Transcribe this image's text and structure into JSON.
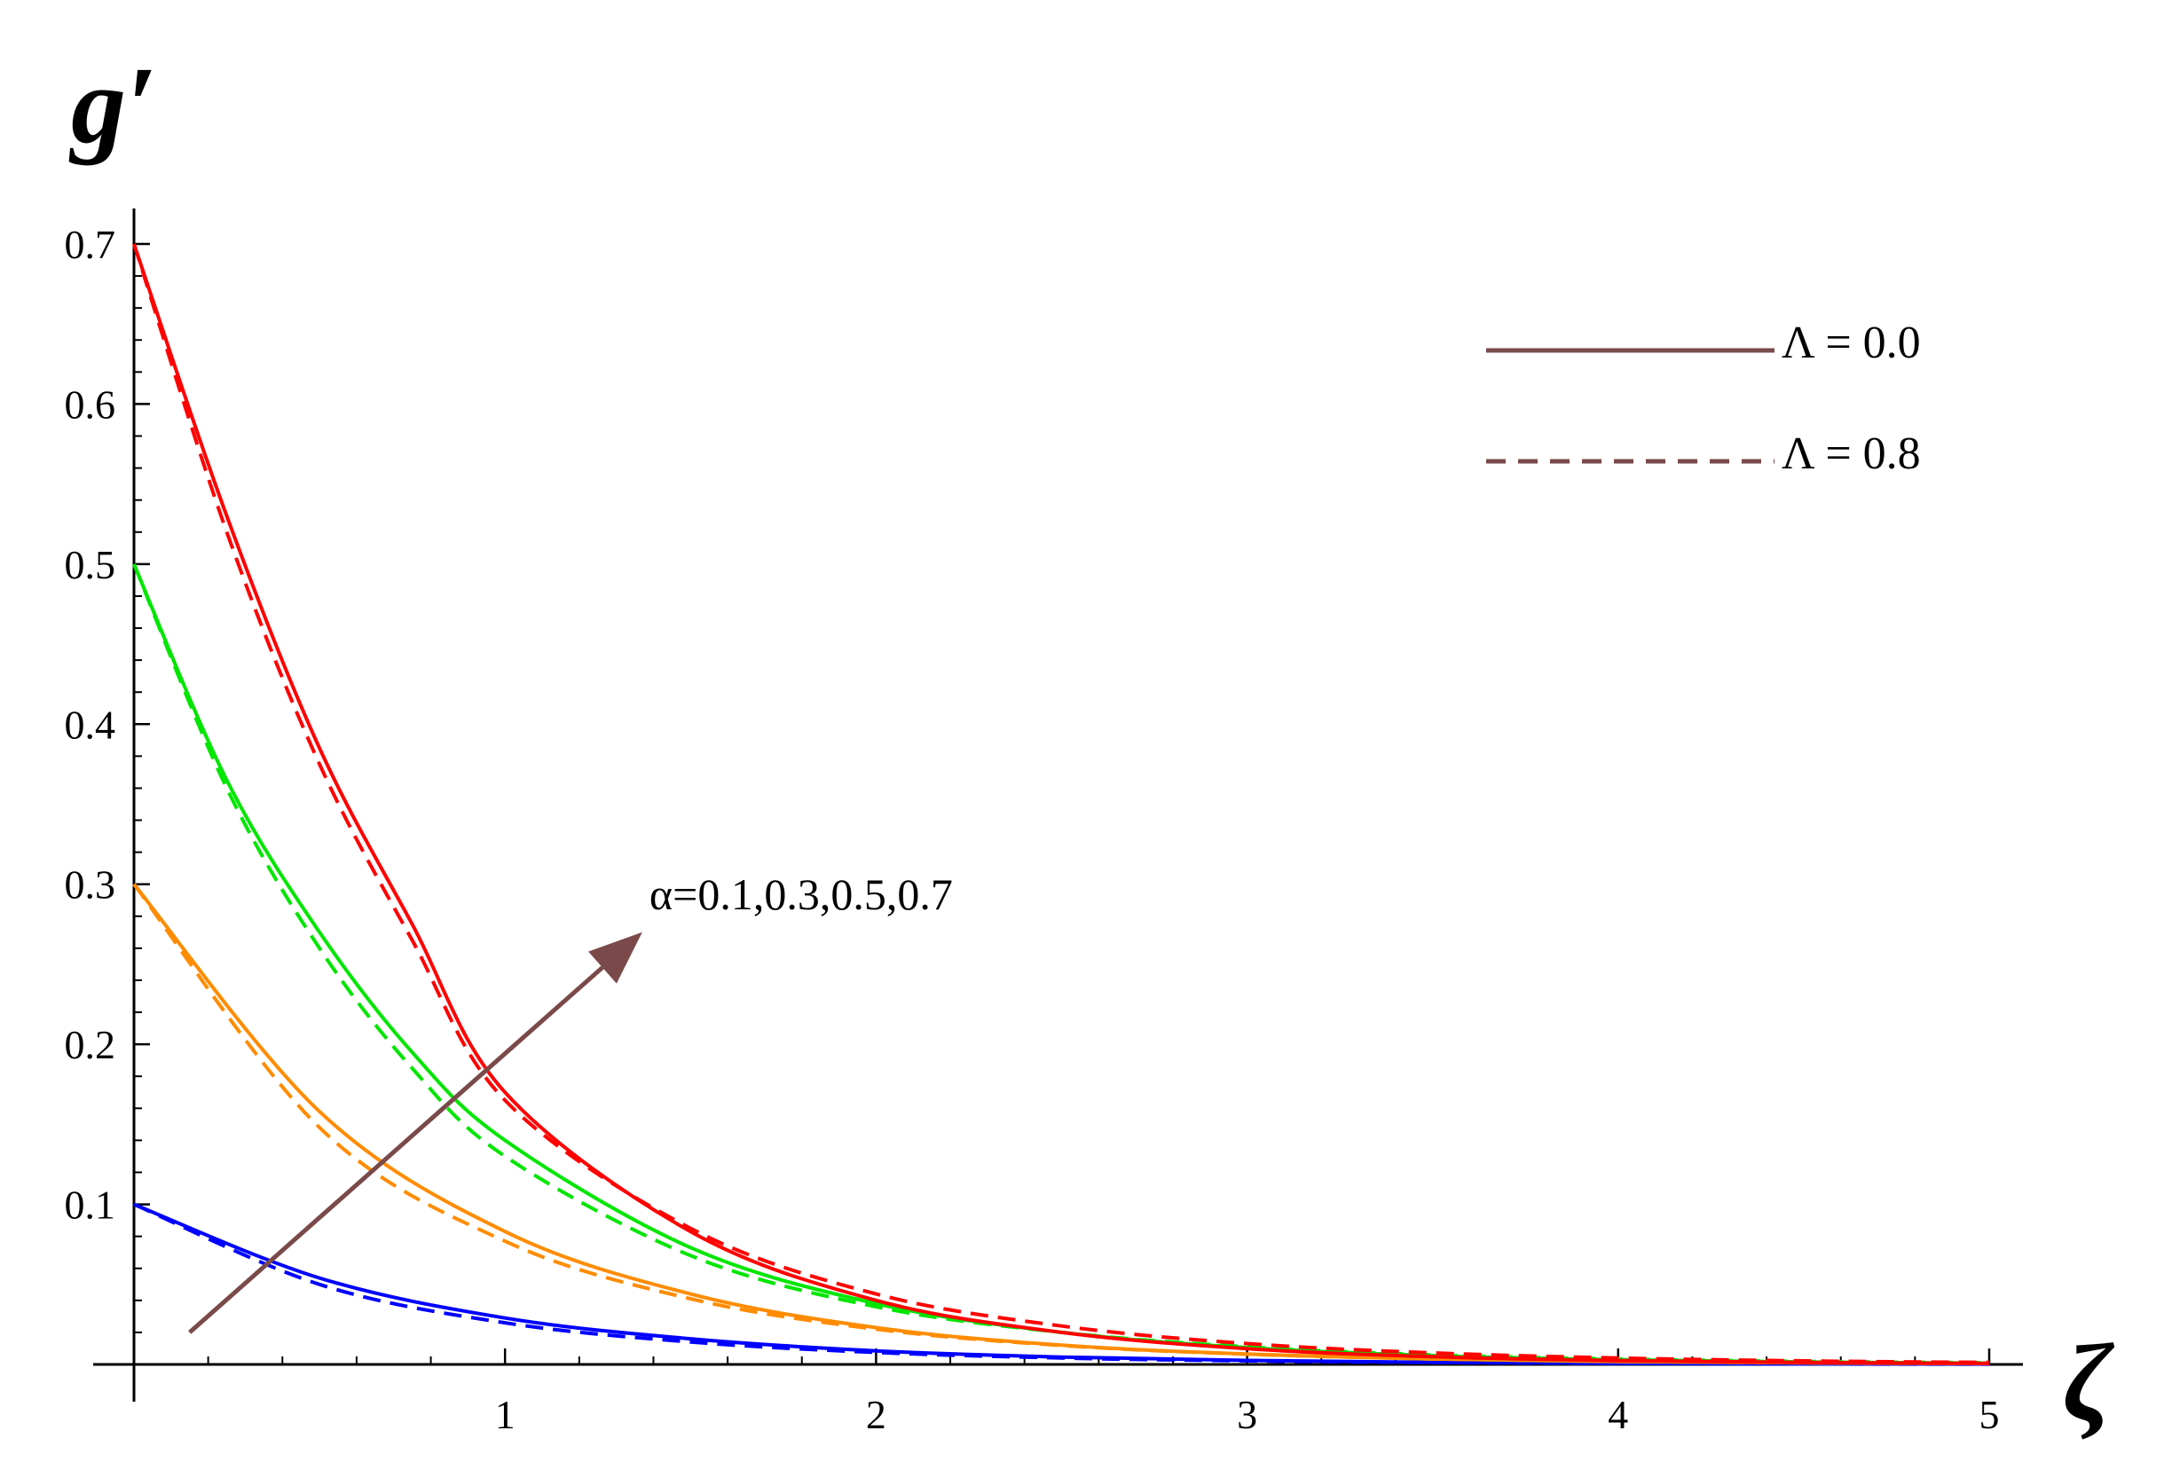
{
  "chart_data": {
    "type": "line",
    "xlabel": "ζ",
    "ylabel": "g′",
    "xlim": [
      0,
      5.1
    ],
    "ylim": [
      0,
      0.72
    ],
    "x_ticks": [
      "1",
      "2",
      "3",
      "4",
      "5"
    ],
    "x_tick_values": [
      1,
      2,
      3,
      4,
      5
    ],
    "y_ticks": [
      "0.1",
      "0.2",
      "0.3",
      "0.4",
      "0.5",
      "0.6",
      "0.7"
    ],
    "y_tick_values": [
      0.1,
      0.2,
      0.3,
      0.4,
      0.5,
      0.6,
      0.7
    ],
    "grid": false,
    "legend_position": "top-right",
    "legend": [
      {
        "label": "Λ = 0.0",
        "style": "solid"
      },
      {
        "label": "Λ = 0.8",
        "style": "dashed"
      }
    ],
    "legend_color": "#7a4a4a",
    "annotation": {
      "text": "α=0.1,0.3,0.5,0.7",
      "arrow_from": [
        0.15,
        0.02
      ],
      "arrow_to": [
        1.37,
        0.27
      ],
      "color": "#7a4a4a"
    },
    "series": [
      {
        "color": "#0000ff",
        "style": "solid",
        "x": [
          0,
          0.5,
          1,
          1.5,
          2,
          2.5,
          3,
          3.5,
          4,
          4.5,
          5
        ],
        "y": [
          0.1,
          0.054,
          0.029,
          0.016,
          0.0085,
          0.0046,
          0.0025,
          0.0013,
          0.0007,
          0.0004,
          0.0002
        ]
      },
      {
        "color": "#0000ff",
        "style": "dashed",
        "x": [
          0,
          0.5,
          1,
          1.5,
          2,
          2.5,
          3,
          3.5,
          4,
          4.5,
          5
        ],
        "y": [
          0.1,
          0.05,
          0.026,
          0.014,
          0.0075,
          0.004,
          0.0022,
          0.0012,
          0.0006,
          0.0003,
          0.0002
        ]
      },
      {
        "color": "#ff8c00",
        "style": "solid",
        "x": [
          0,
          0.5,
          1,
          1.5,
          2,
          2.5,
          3,
          3.5,
          4,
          4.5,
          5
        ],
        "y": [
          0.3,
          0.158,
          0.083,
          0.044,
          0.023,
          0.012,
          0.0065,
          0.0034,
          0.0018,
          0.001,
          0.0005
        ]
      },
      {
        "color": "#ff8c00",
        "style": "dashed",
        "x": [
          0,
          0.5,
          1,
          1.5,
          2,
          2.5,
          3,
          3.5,
          4,
          4.5,
          5
        ],
        "y": [
          0.3,
          0.148,
          0.077,
          0.041,
          0.022,
          0.0118,
          0.0064,
          0.0035,
          0.0019,
          0.001,
          0.0006
        ]
      },
      {
        "color": "#00e600",
        "style": "solid",
        "x": [
          0,
          0.25,
          0.5,
          0.75,
          1,
          1.5,
          2,
          2.5,
          3,
          3.5,
          4,
          4.5,
          5
        ],
        "y": [
          0.5,
          0.365,
          0.27,
          0.195,
          0.14,
          0.073,
          0.038,
          0.02,
          0.0105,
          0.0055,
          0.0029,
          0.0015,
          0.0008
        ]
      },
      {
        "color": "#00e600",
        "style": "dashed",
        "x": [
          0,
          0.25,
          0.5,
          0.75,
          1,
          1.5,
          2,
          2.5,
          3,
          3.5,
          4,
          4.5,
          5
        ],
        "y": [
          0.5,
          0.36,
          0.26,
          0.185,
          0.13,
          0.068,
          0.036,
          0.02,
          0.011,
          0.006,
          0.0034,
          0.0019,
          0.001
        ]
      },
      {
        "color": "#ff0000",
        "style": "solid",
        "x": [
          0,
          0.25,
          0.5,
          0.75,
          1,
          1.5,
          2,
          2.5,
          3,
          3.5,
          4,
          4.5,
          5
        ],
        "y": [
          0.7,
          0.53,
          0.385,
          0.275,
          0.17,
          0.083,
          0.04,
          0.02,
          0.0098,
          0.0048,
          0.0024,
          0.0012,
          0.0006
        ]
      },
      {
        "color": "#ff0000",
        "style": "dashed",
        "x": [
          0,
          0.25,
          0.5,
          0.75,
          1,
          1.5,
          2,
          2.5,
          3,
          3.5,
          4,
          4.5,
          5
        ],
        "y": [
          0.7,
          0.52,
          0.375,
          0.265,
          0.165,
          0.085,
          0.044,
          0.024,
          0.013,
          0.0072,
          0.004,
          0.0022,
          0.0012
        ]
      }
    ]
  }
}
